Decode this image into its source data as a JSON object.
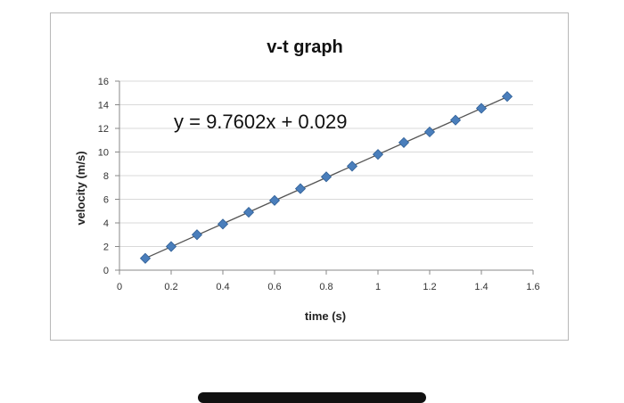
{
  "chart_data": {
    "type": "scatter",
    "title": "v-t graph",
    "xlabel": "time (s)",
    "ylabel": "velocity (m/s)",
    "xlim": [
      0,
      1.6
    ],
    "ylim": [
      0,
      16
    ],
    "x_ticks": [
      "0",
      "0.2",
      "0.4",
      "0.6",
      "0.8",
      "1",
      "1.2",
      "1.4",
      "1.6"
    ],
    "y_ticks": [
      "0",
      "2",
      "4",
      "6",
      "8",
      "10",
      "12",
      "14",
      "16"
    ],
    "grid": "horizontal",
    "legend": "none",
    "series": [
      {
        "x": [
          0.1,
          0.2,
          0.3,
          0.4,
          0.5,
          0.6,
          0.7,
          0.8,
          0.9,
          1.0,
          1.1,
          1.2,
          1.3,
          1.4,
          1.5
        ],
        "y": [
          1.0,
          2.0,
          3.0,
          3.9,
          4.9,
          5.9,
          6.9,
          7.9,
          8.8,
          9.8,
          10.8,
          11.7,
          12.7,
          13.7,
          14.7
        ],
        "marker": "diamond",
        "color": "#4a7ebb"
      }
    ],
    "trendline": {
      "type": "linear",
      "slope": 9.7602,
      "intercept": 0.029,
      "x_range": [
        0.1,
        1.5
      ],
      "color": "#555555",
      "equation": "y = 9.7602x + 0.029"
    },
    "colors": {
      "gridline": "#d9d9d9",
      "marker": "#4a7ebb",
      "marker_stroke": "#2f5f96",
      "trendline": "#555555"
    }
  }
}
